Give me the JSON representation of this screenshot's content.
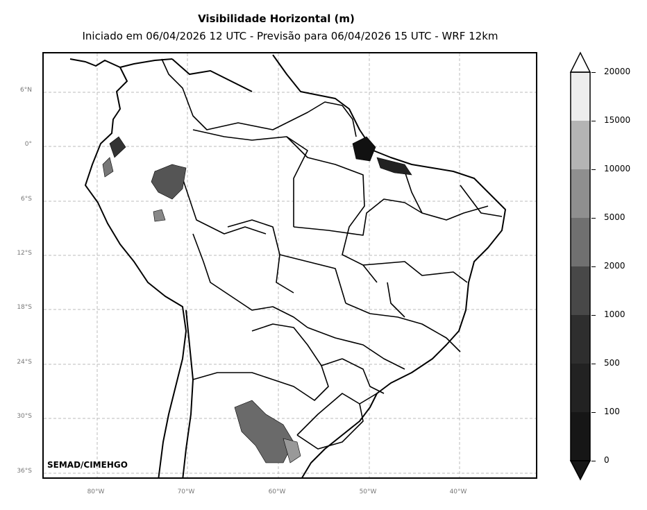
{
  "title": "Visibilidade Horizontal (m)",
  "subtitle": "Iniciado em 06/04/2026 12 UTC - Previsão para 06/04/2026 15 UTC - WRF 12km",
  "credit": "SEMAD/CIMEHGO",
  "lat_labels": [
    "6°N",
    "0°",
    "6°S",
    "12°S",
    "18°S",
    "24°S",
    "30°S",
    "36°S"
  ],
  "lon_labels": [
    "80°W",
    "70°W",
    "60°W",
    "50°W",
    "40°W"
  ],
  "colorbar": {
    "ticks": [
      "20000",
      "15000",
      "10000",
      "5000",
      "2000",
      "1000",
      "500",
      "100",
      "0"
    ],
    "colors": [
      "#ededed",
      "#b4b4b4",
      "#8f8f8f",
      "#707070",
      "#484848",
      "#2e2e2e",
      "#222222",
      "#161616"
    ],
    "extend": "both"
  }
}
